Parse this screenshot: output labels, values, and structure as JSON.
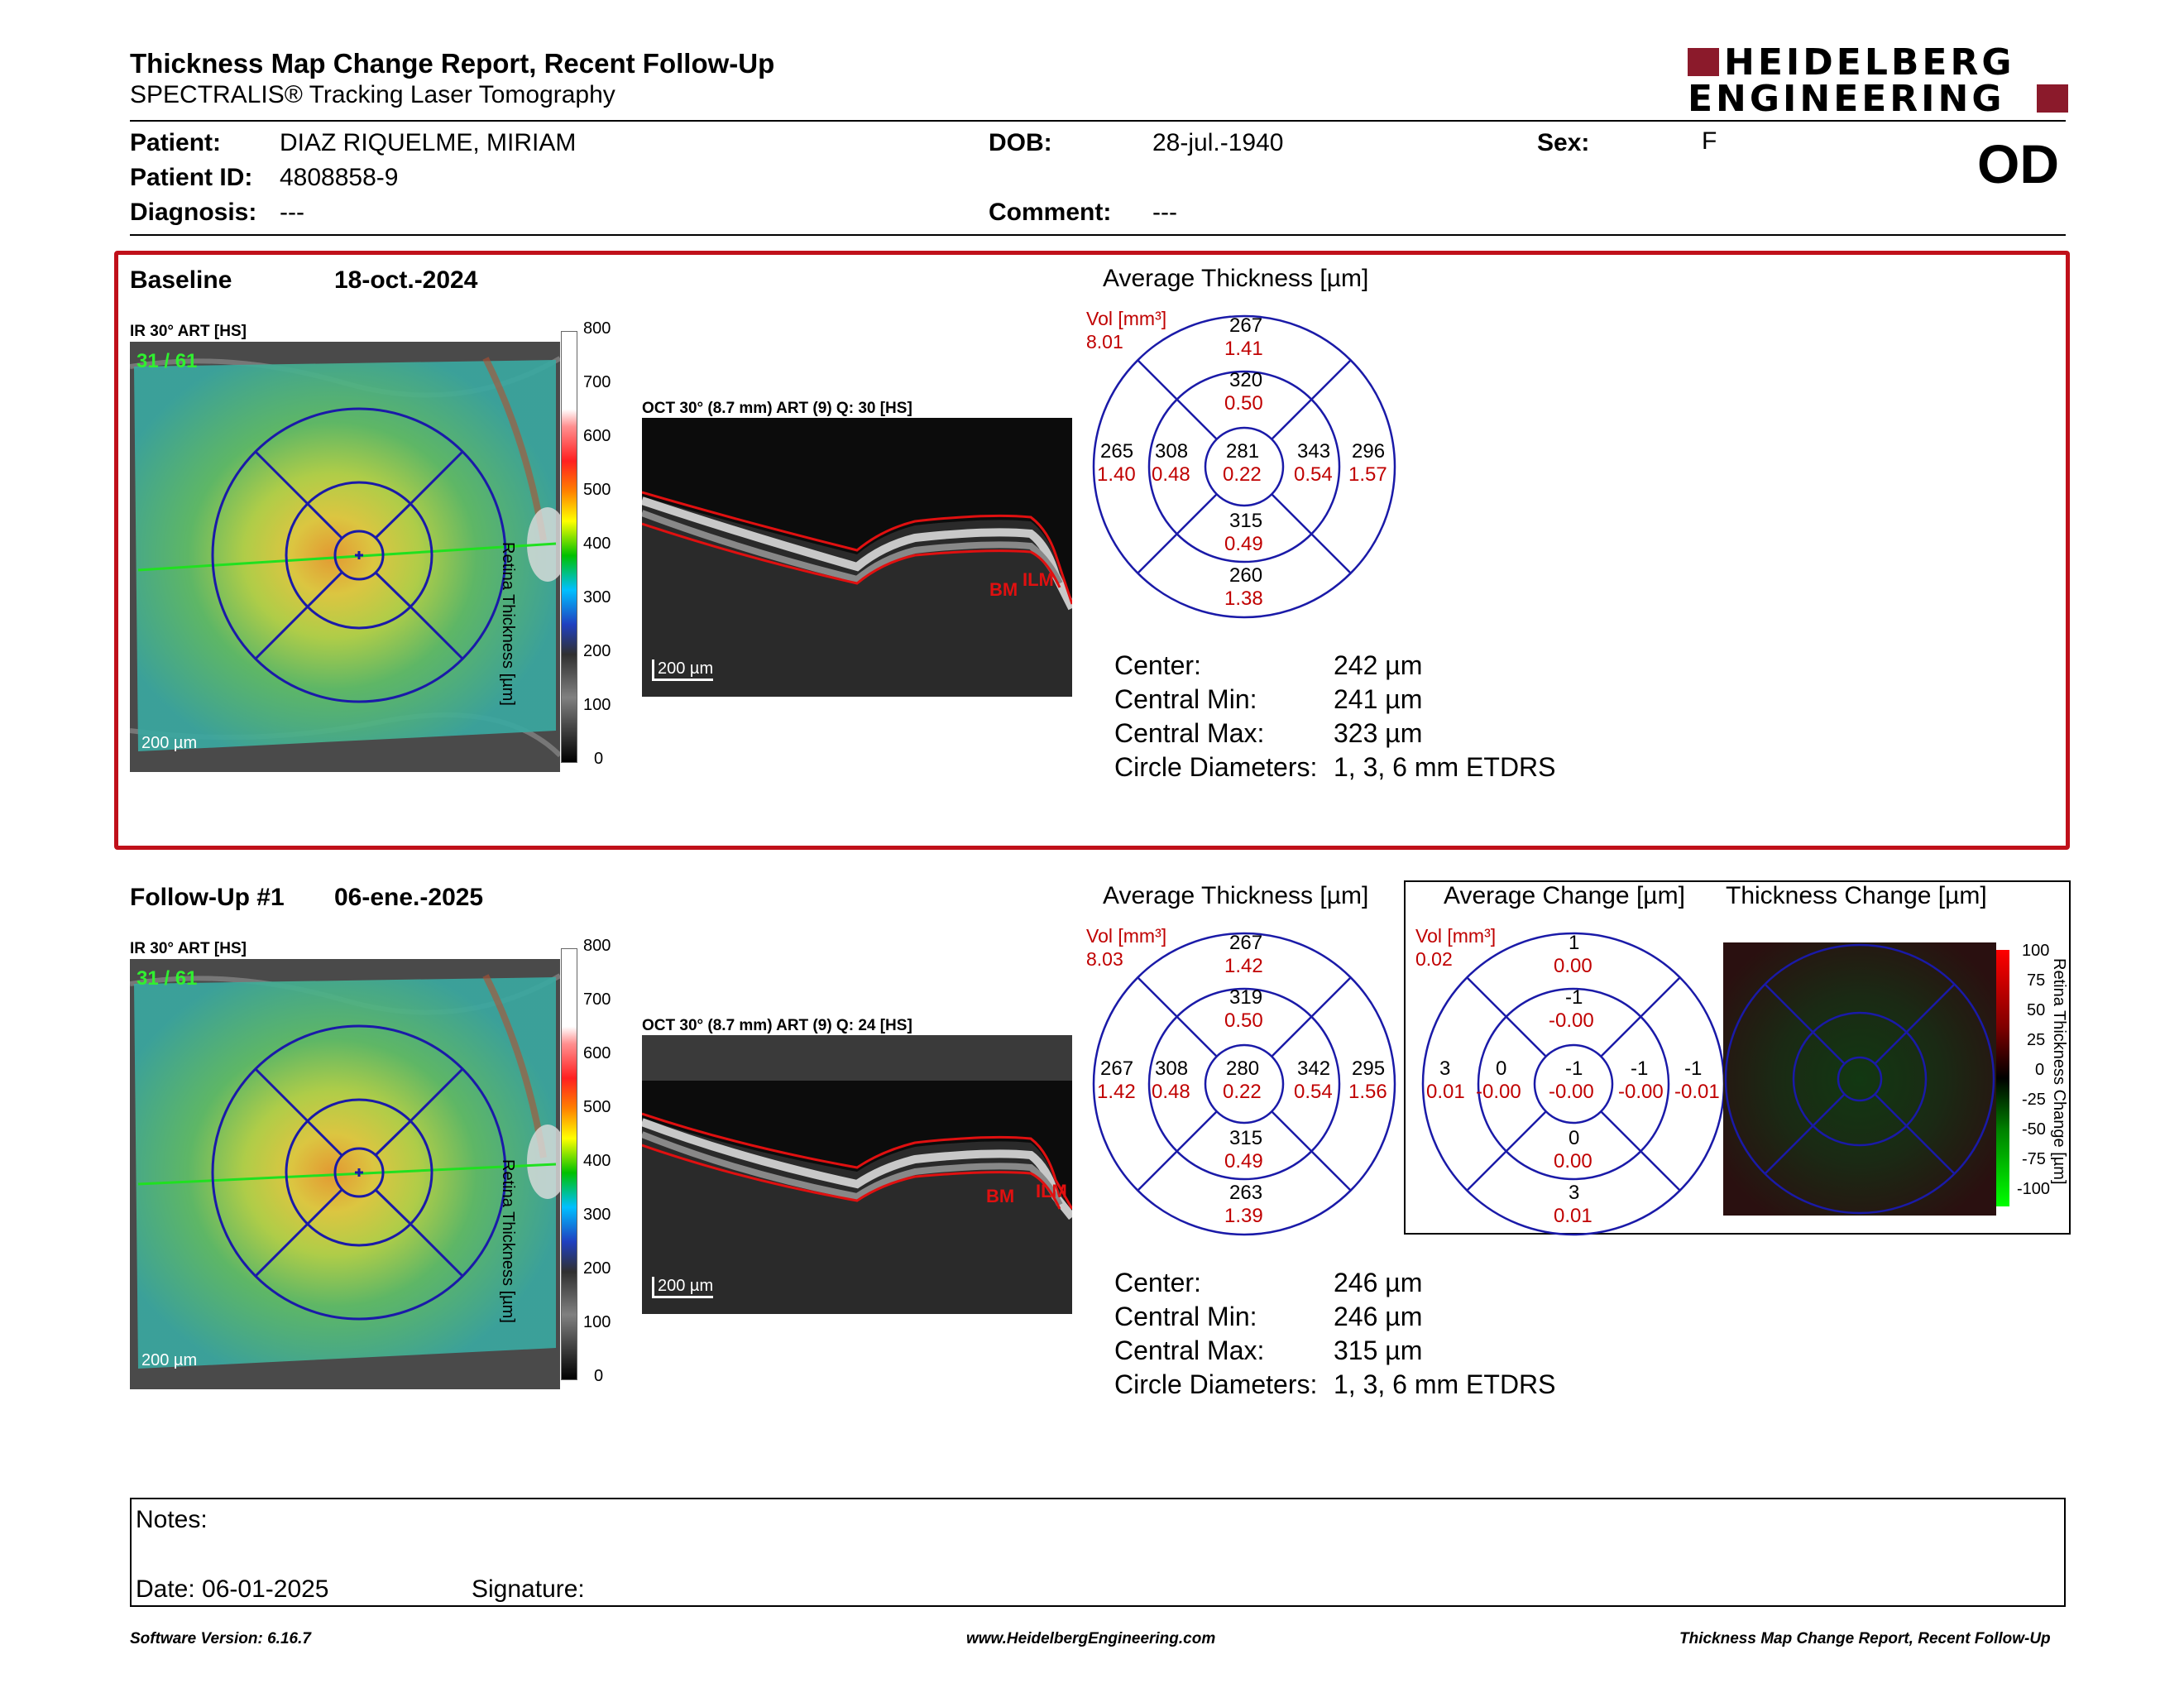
{
  "header": {
    "title": "Thickness Map Change Report, Recent Follow-Up",
    "subtitle": "SPECTRALIS® Tracking Laser Tomography",
    "logo_line1": "HEIDELBERG",
    "logo_line2": "ENGINEERING",
    "eye": "OD"
  },
  "patient": {
    "name_label": "Patient:",
    "name": "DIAZ RIQUELME, MIRIAM",
    "id_label": "Patient ID:",
    "id": "4808858-9",
    "diagnosis_label": "Diagnosis:",
    "diagnosis": "---",
    "dob_label": "DOB:",
    "dob": "28-jul.-1940",
    "comment_label": "Comment:",
    "comment": "---",
    "sex_label": "Sex:",
    "sex": "F"
  },
  "baseline": {
    "label": "Baseline",
    "date": "18-oct.-2024",
    "ir_label": "IR 30° ART [HS]",
    "ir_counter": "31 / 61",
    "ir_scale": "200 µm",
    "oct_label": "OCT 30° (8.7 mm) ART (9) Q: 30 [HS]",
    "oct_scale": "200 µm",
    "layer_bm": "BM",
    "layer_ilm": "ILM",
    "colorbar_ticks": [
      "800",
      "700",
      "600",
      "500",
      "400",
      "300",
      "200",
      "100",
      "0"
    ],
    "colorbar_title": "Retina Thickness [µm]",
    "avg_title": "Average Thickness [µm]",
    "vol_label": "Vol [mm³]",
    "vol_total": "8.01",
    "sectors": {
      "outer_top": {
        "t": "267",
        "v": "1.41"
      },
      "inner_top": {
        "t": "320",
        "v": "0.50"
      },
      "outer_left": {
        "t": "265",
        "v": "1.40"
      },
      "inner_left": {
        "t": "308",
        "v": "0.48"
      },
      "center": {
        "t": "281",
        "v": "0.22"
      },
      "inner_right": {
        "t": "343",
        "v": "0.54"
      },
      "outer_right": {
        "t": "296",
        "v": "1.57"
      },
      "inner_bottom": {
        "t": "315",
        "v": "0.49"
      },
      "outer_bottom": {
        "t": "260",
        "v": "1.38"
      }
    },
    "stats": {
      "center_label": "Center:",
      "center": "242 µm",
      "min_label": "Central Min:",
      "min": "241 µm",
      "max_label": "Central Max:",
      "max": "323 µm",
      "diam_label": "Circle Diameters:",
      "diam": "1, 3, 6 mm ETDRS"
    }
  },
  "followup": {
    "label": "Follow-Up #1",
    "date": "06-ene.-2025",
    "ir_label": "IR 30° ART [HS]",
    "ir_counter": "31 / 61",
    "ir_scale": "200 µm",
    "oct_label": "OCT 30° (8.7 mm) ART (9) Q: 24 [HS]",
    "oct_scale": "200 µm",
    "layer_bm": "BM",
    "layer_ilm": "ILM",
    "colorbar_ticks": [
      "800",
      "700",
      "600",
      "500",
      "400",
      "300",
      "200",
      "100",
      "0"
    ],
    "colorbar_title": "Retina Thickness [µm]",
    "avg_title": "Average Thickness [µm]",
    "vol_label": "Vol [mm³]",
    "vol_total": "8.03",
    "sectors": {
      "outer_top": {
        "t": "267",
        "v": "1.42"
      },
      "inner_top": {
        "t": "319",
        "v": "0.50"
      },
      "outer_left": {
        "t": "267",
        "v": "1.42"
      },
      "inner_left": {
        "t": "308",
        "v": "0.48"
      },
      "center": {
        "t": "280",
        "v": "0.22"
      },
      "inner_right": {
        "t": "342",
        "v": "0.54"
      },
      "outer_right": {
        "t": "295",
        "v": "1.56"
      },
      "inner_bottom": {
        "t": "315",
        "v": "0.49"
      },
      "outer_bottom": {
        "t": "263",
        "v": "1.39"
      }
    },
    "stats": {
      "center_label": "Center:",
      "center": "246 µm",
      "min_label": "Central Min:",
      "min": "246 µm",
      "max_label": "Central Max:",
      "max": "315 µm",
      "diam_label": "Circle Diameters:",
      "diam": "1, 3, 6 mm ETDRS"
    },
    "change_title": "Average Change [µm]",
    "change_vol_label": "Vol [mm³]",
    "change_vol_total": "0.02",
    "change_sectors": {
      "outer_top": {
        "t": "1",
        "v": "0.00"
      },
      "inner_top": {
        "t": "-1",
        "v": "-0.00"
      },
      "outer_left": {
        "t": "3",
        "v": "0.01"
      },
      "inner_left": {
        "t": "0",
        "v": "-0.00"
      },
      "center": {
        "t": "-1",
        "v": "-0.00"
      },
      "inner_right": {
        "t": "-1",
        "v": "-0.00"
      },
      "outer_right": {
        "t": "-1",
        "v": "-0.01"
      },
      "inner_bottom": {
        "t": "0",
        "v": "0.00"
      },
      "outer_bottom": {
        "t": "3",
        "v": "0.01"
      }
    },
    "tchange_title": "Thickness Change [µm]",
    "tchange_ticks": [
      "100",
      "75",
      "50",
      "25",
      "0",
      "-25",
      "-50",
      "-75",
      "-100"
    ],
    "tchange_bar_title": "Retina Thickness Change [µm]"
  },
  "notes": {
    "notes_label": "Notes:",
    "date_label": "Date: 06-01-2025",
    "signature_label": "Signature:"
  },
  "footer": {
    "left": "Software Version: 6.16.7",
    "center": "www.HeidelbergEngineering.com",
    "right": "Thickness Map Change Report, Recent Follow-Up"
  },
  "colors": {
    "accent_red": "#c00000",
    "grid_blue": "#1a1aa8",
    "box_red": "#c0101a"
  }
}
